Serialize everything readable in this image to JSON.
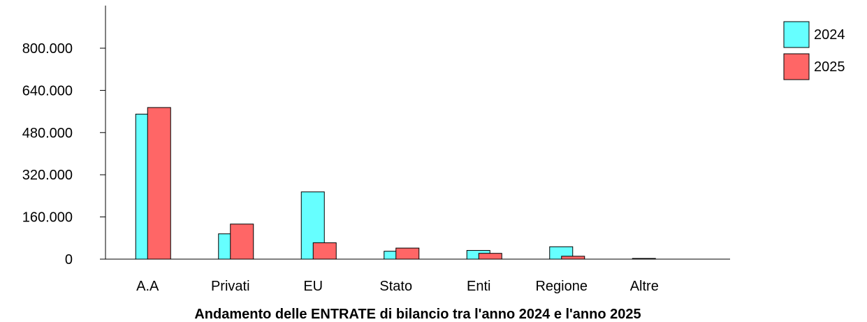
{
  "chart_data": {
    "type": "bar",
    "title": "Andamento delle ENTRATE di bilancio tra l'anno 2024 e l'anno 2025",
    "xlabel": "",
    "ylabel": "",
    "categories": [
      "A.A",
      "Privati",
      "EU",
      "Stato",
      "Enti",
      "Regione",
      "Altre"
    ],
    "series": [
      {
        "name": "2024",
        "color": "#66ffff",
        "values": [
          550000,
          96000,
          255000,
          30000,
          33000,
          47000,
          2000
        ]
      },
      {
        "name": "2025",
        "color": "#ff6666",
        "values": [
          575000,
          133000,
          62000,
          42000,
          22000,
          11000,
          0
        ]
      }
    ],
    "ylim": [
      0,
      800000
    ],
    "yticks": [
      0,
      160000,
      320000,
      480000,
      640000,
      800000
    ],
    "ytick_labels": [
      "0",
      "160.000",
      "320.000",
      "480.000",
      "640.000",
      "800.000"
    ],
    "grid": false,
    "legend_position": "top-right"
  }
}
